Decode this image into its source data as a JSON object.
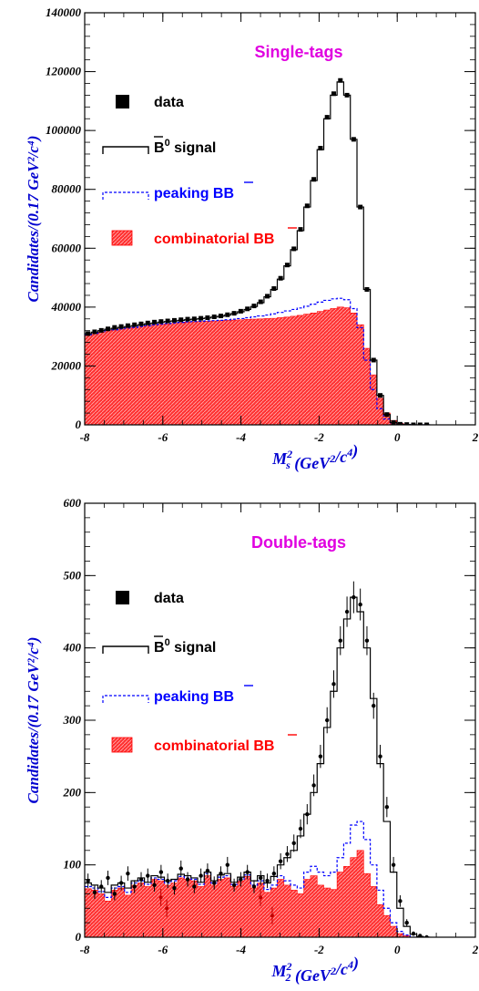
{
  "colors": {
    "data": "#000000",
    "signal": "#000000",
    "peaking": "#0000ff",
    "combinatorial": "#ff0000",
    "title": "#e000e0",
    "axis_title": "#0000d0"
  },
  "chart_data": [
    {
      "type": "histogram",
      "title": "Single-tags",
      "xlabel_base": "M",
      "xlabel_sup": "2",
      "xlabel_sub": "s",
      "xlabel_rest": " (GeV",
      "xlabel_unit_sup": "2",
      "xlabel_unit_mid": "/c",
      "xlabel_unit_sup2": "4",
      "xlabel_end": ")",
      "ylabel": "Candidates/(0.17 GeV²/c⁴)",
      "xlim": [
        -8,
        2
      ],
      "ylim": [
        0,
        140000
      ],
      "x_ticks": [
        "-8",
        "-6",
        "-4",
        "-2",
        "0",
        "2"
      ],
      "y_ticks": [
        "0",
        "20000",
        "40000",
        "60000",
        "80000",
        "100000",
        "120000",
        "140000"
      ],
      "legend": {
        "data": "data",
        "signal_pre": "B",
        "signal_sup": "0",
        "signal_post": " signal",
        "peaking": "peaking BB",
        "combinatorial": "combinatorial BB"
      },
      "bin_edges_start": -8,
      "bin_width": 0.17,
      "combinatorial": [
        30500,
        31000,
        31500,
        32000,
        32200,
        32500,
        32800,
        33000,
        33300,
        33600,
        33900,
        34100,
        34300,
        34500,
        34700,
        34900,
        35000,
        35100,
        35200,
        35300,
        35400,
        35500,
        35600,
        35700,
        35800,
        35900,
        36000,
        36100,
        36200,
        36400,
        36600,
        36900,
        37200,
        37600,
        38000,
        38500,
        39000,
        39500,
        40000,
        39800,
        38000,
        34000,
        26000,
        17000,
        9000,
        4000,
        1500,
        500,
        100,
        0,
        0,
        0
      ],
      "peaking": [
        30600,
        31100,
        31600,
        32100,
        32300,
        32600,
        32900,
        33100,
        33400,
        33700,
        34000,
        34200,
        34400,
        34600,
        34800,
        35000,
        35100,
        35200,
        35300,
        35400,
        35500,
        35700,
        35900,
        36100,
        36400,
        36700,
        37000,
        37300,
        37700,
        38200,
        38700,
        39200,
        39700,
        40300,
        41000,
        41700,
        42300,
        42800,
        43000,
        42500,
        39500,
        33000,
        22000,
        12000,
        5500,
        2000,
        700,
        200,
        50,
        0,
        0,
        0
      ],
      "signal": [
        31000,
        31500,
        32000,
        32500,
        32800,
        33100,
        33400,
        33700,
        34000,
        34300,
        34600,
        34900,
        35100,
        35300,
        35500,
        35700,
        35900,
        36100,
        36300,
        36600,
        36900,
        37300,
        37800,
        38400,
        39200,
        40200,
        41500,
        43500,
        46000,
        49500,
        54000,
        59500,
        66000,
        74000,
        83000,
        93500,
        104000,
        112000,
        116500,
        112000,
        97000,
        74000,
        46000,
        22000,
        10000,
        3500,
        800,
        200,
        100,
        0,
        0,
        0
      ],
      "data": [
        31000,
        31600,
        32100,
        32600,
        33100,
        33400,
        33700,
        34000,
        34300,
        34600,
        34900,
        35100,
        35300,
        35500,
        35700,
        35900,
        36000,
        36200,
        36400,
        36700,
        37000,
        37400,
        37900,
        38600,
        39400,
        40400,
        41800,
        43700,
        46300,
        49800,
        54300,
        59800,
        66400,
        74400,
        83400,
        94000,
        104500,
        112500,
        117000,
        112000,
        97000,
        74000,
        46000,
        22000,
        10000,
        3500,
        800,
        200,
        100,
        0,
        0,
        0
      ]
    },
    {
      "type": "histogram",
      "title": "Double-tags",
      "xlabel_base": "M",
      "xlabel_sup": "2",
      "xlabel_sub": "2",
      "xlabel_rest": " (GeV",
      "xlabel_unit_sup": "2",
      "xlabel_unit_mid": "/c",
      "xlabel_unit_sup2": "4",
      "xlabel_end": ")",
      "ylabel": "Candidates/(0.17 GeV²/c⁴)",
      "xlim": [
        -8,
        2
      ],
      "ylim": [
        0,
        600
      ],
      "x_ticks": [
        "-8",
        "-6",
        "-4",
        "-2",
        "0",
        "2"
      ],
      "y_ticks": [
        "0",
        "100",
        "200",
        "300",
        "400",
        "500",
        "600"
      ],
      "legend": {
        "data": "data",
        "signal_pre": "B",
        "signal_sup": "0",
        "signal_post": " signal",
        "peaking": "peaking BB",
        "combinatorial": "combinatorial BB"
      },
      "bin_edges_start": -8,
      "bin_width": 0.17,
      "combinatorial": [
        67,
        65,
        60,
        50,
        65,
        68,
        58,
        72,
        75,
        70,
        80,
        78,
        72,
        75,
        82,
        80,
        78,
        70,
        85,
        72,
        80,
        82,
        70,
        78,
        84,
        68,
        75,
        62,
        68,
        80,
        72,
        65,
        60,
        80,
        85,
        72,
        68,
        66,
        90,
        98,
        110,
        120,
        88,
        70,
        45,
        30,
        15,
        5,
        2,
        0,
        0,
        0
      ],
      "peaking": [
        70,
        68,
        63,
        55,
        68,
        70,
        62,
        75,
        78,
        73,
        82,
        80,
        75,
        78,
        84,
        82,
        80,
        73,
        88,
        75,
        83,
        85,
        73,
        80,
        86,
        72,
        78,
        66,
        72,
        85,
        78,
        72,
        68,
        90,
        98,
        90,
        85,
        90,
        110,
        130,
        155,
        160,
        135,
        100,
        65,
        40,
        20,
        8,
        3,
        0,
        0,
        0
      ],
      "signal": [
        75,
        72,
        68,
        62,
        72,
        75,
        68,
        78,
        82,
        76,
        85,
        83,
        78,
        80,
        87,
        85,
        82,
        76,
        90,
        78,
        86,
        88,
        76,
        83,
        90,
        78,
        85,
        75,
        84,
        100,
        110,
        120,
        140,
        170,
        200,
        240,
        290,
        340,
        400,
        440,
        470,
        450,
        400,
        330,
        240,
        160,
        90,
        40,
        15,
        4,
        1,
        0
      ],
      "data": [
        78,
        62,
        70,
        82,
        60,
        75,
        88,
        70,
        80,
        85,
        72,
        90,
        78,
        68,
        95,
        80,
        70,
        85,
        92,
        75,
        88,
        100,
        72,
        80,
        90,
        70,
        82,
        78,
        88,
        105,
        115,
        130,
        150,
        170,
        210,
        250,
        300,
        350,
        410,
        450,
        470,
        460,
        410,
        320,
        250,
        180,
        100,
        50,
        20,
        5,
        2,
        0
      ],
      "data_err": [
        10,
        9,
        9,
        10,
        9,
        10,
        10,
        9,
        10,
        10,
        9,
        10,
        10,
        9,
        11,
        10,
        9,
        10,
        10,
        9,
        10,
        11,
        9,
        10,
        10,
        9,
        10,
        10,
        10,
        11,
        11,
        12,
        13,
        14,
        15,
        16,
        18,
        19,
        20,
        21,
        22,
        22,
        20,
        18,
        16,
        14,
        11,
        8,
        5,
        3,
        2,
        1
      ],
      "low_points": [
        {
          "x": -6.05,
          "y": 55
        },
        {
          "x": -5.9,
          "y": 40
        },
        {
          "x": -3.5,
          "y": 55
        },
        {
          "x": -3.2,
          "y": 30
        }
      ]
    }
  ]
}
